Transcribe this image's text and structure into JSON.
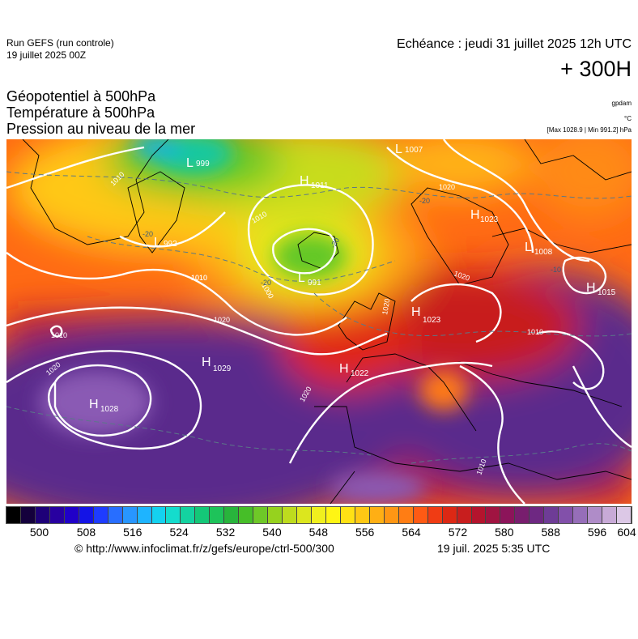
{
  "header": {
    "run_title": "Run GEFS (run controle)",
    "run_date": "19 juillet 2025 00Z",
    "echeance": "Echéance : jeudi 31 juillet 2025 12h UTC",
    "lead_time": "+ 300H",
    "parameters": [
      "Géopotentiel à 500hPa",
      "Température à 500hPa",
      "Pression au niveau de la mer"
    ],
    "unit_geopotential": "gpdam",
    "unit_temperature": "°C",
    "max_min": "[Max 1028.9 | Min 991.2] hPa"
  },
  "pressure_centers": [
    {
      "type": "L",
      "value": "1007"
    },
    {
      "type": "L",
      "value": "999"
    },
    {
      "type": "H",
      "value": "1011"
    },
    {
      "type": "L",
      "value": "992"
    },
    {
      "type": "L",
      "value": "991"
    },
    {
      "type": "H",
      "value": "1023"
    },
    {
      "type": "L",
      "value": "1008"
    },
    {
      "type": "H",
      "value": "1015"
    },
    {
      "type": "H",
      "value": "1023"
    },
    {
      "type": "H",
      "value": "1029"
    },
    {
      "type": "H",
      "value": "1022"
    },
    {
      "type": "H",
      "value": "1028"
    }
  ],
  "isobar_labels": [
    "1010",
    "1010",
    "1010",
    "1020",
    "1020",
    "1020",
    "1020",
    "1020",
    "1020",
    "1000",
    "1010",
    "1010",
    "1010",
    "1010"
  ],
  "temperature_labels": [
    "-20",
    "-20",
    "-20",
    "-20",
    "-10"
  ],
  "colorbar": {
    "colors": [
      "#000000",
      "#14003c",
      "#1e0078",
      "#2800a0",
      "#2000c8",
      "#1414e6",
      "#1e3cff",
      "#286eff",
      "#2896ff",
      "#1eb4ff",
      "#14d2f0",
      "#14dccd",
      "#14d2a0",
      "#14c878",
      "#1ec35a",
      "#28b43c",
      "#46be28",
      "#6ec828",
      "#96d21e",
      "#bedc1e",
      "#dce61e",
      "#f0f01e",
      "#fff514",
      "#ffe114",
      "#ffc814",
      "#ffaf14",
      "#ff9614",
      "#ff7d14",
      "#ff5a14",
      "#f03c14",
      "#dc2814",
      "#c81e1e",
      "#b4142d",
      "#a01441",
      "#8c145a",
      "#781e6e",
      "#6e2882",
      "#6e3c96",
      "#8250aa",
      "#966eb9",
      "#af8cc8",
      "#c8aad7",
      "#dcc8e6"
    ],
    "ticks": [
      {
        "label": "500",
        "frac": 0.0525
      },
      {
        "label": "508",
        "frac": 0.1275
      },
      {
        "label": "516",
        "frac": 0.2018
      },
      {
        "label": "524",
        "frac": 0.2761
      },
      {
        "label": "532",
        "frac": 0.3505
      },
      {
        "label": "540",
        "frac": 0.4248
      },
      {
        "label": "548",
        "frac": 0.4991
      },
      {
        "label": "556",
        "frac": 0.5734
      },
      {
        "label": "564",
        "frac": 0.6477
      },
      {
        "label": "572",
        "frac": 0.7221
      },
      {
        "label": "580",
        "frac": 0.7964
      },
      {
        "label": "588",
        "frac": 0.8707
      },
      {
        "label": "596",
        "frac": 0.945
      },
      {
        "label": "604",
        "frac": 1.0
      }
    ]
  },
  "footer": {
    "credit": "© http://www.infoclimat.fr/z/gefs/europe/ctrl-500/300",
    "generated": "19 juil. 2025  5:35 UTC"
  }
}
